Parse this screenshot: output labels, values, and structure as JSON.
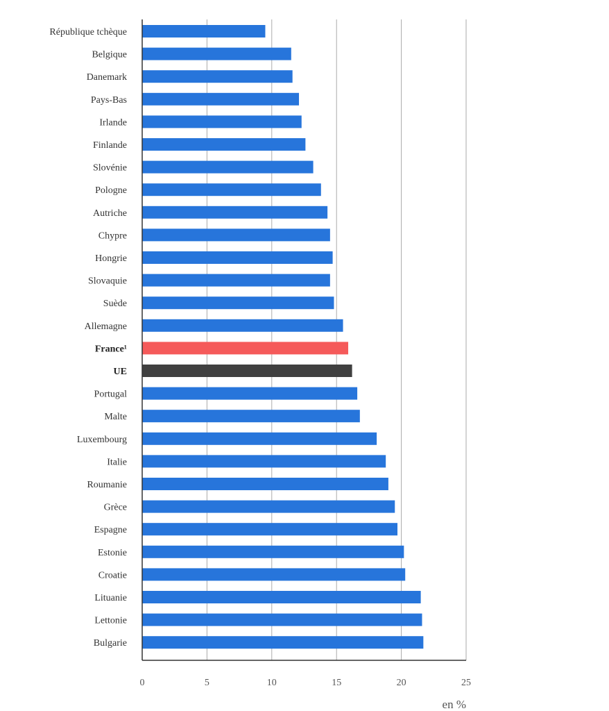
{
  "chart_data": {
    "type": "bar",
    "orientation": "horizontal",
    "categories": [
      "République tchèque",
      "Belgique",
      "Danemark",
      "Pays-Bas",
      "Irlande",
      "Finlande",
      "Slovénie",
      "Pologne",
      "Autriche",
      "Chypre",
      "Hongrie",
      "Slovaquie",
      "Suède",
      "Allemagne",
      "France¹",
      "UE",
      "Portugal",
      "Malte",
      "Luxembourg",
      "Italie",
      "Roumanie",
      "Grèce",
      "Espagne",
      "Estonie",
      "Croatie",
      "Lituanie",
      "Lettonie",
      "Bulgarie"
    ],
    "values": [
      9.5,
      11.5,
      11.6,
      12.1,
      12.3,
      12.6,
      13.2,
      13.8,
      14.3,
      14.5,
      14.7,
      14.5,
      14.8,
      15.5,
      15.9,
      16.2,
      16.6,
      16.8,
      18.1,
      18.8,
      19.0,
      19.5,
      19.7,
      20.2,
      20.3,
      21.5,
      21.6,
      21.7
    ],
    "highlight": {
      "France¹": "#f55a5a",
      "UE": "#404040"
    },
    "bold_categories": [
      "France¹",
      "UE"
    ],
    "bar_color": "#2775db",
    "xlim": [
      0,
      25
    ],
    "xticks": [
      0,
      5,
      10,
      15,
      20,
      25
    ],
    "xlabel": "en %",
    "grid": "vertical",
    "grid_color": "#aaaaaa",
    "title": "",
    "ylabel": ""
  }
}
